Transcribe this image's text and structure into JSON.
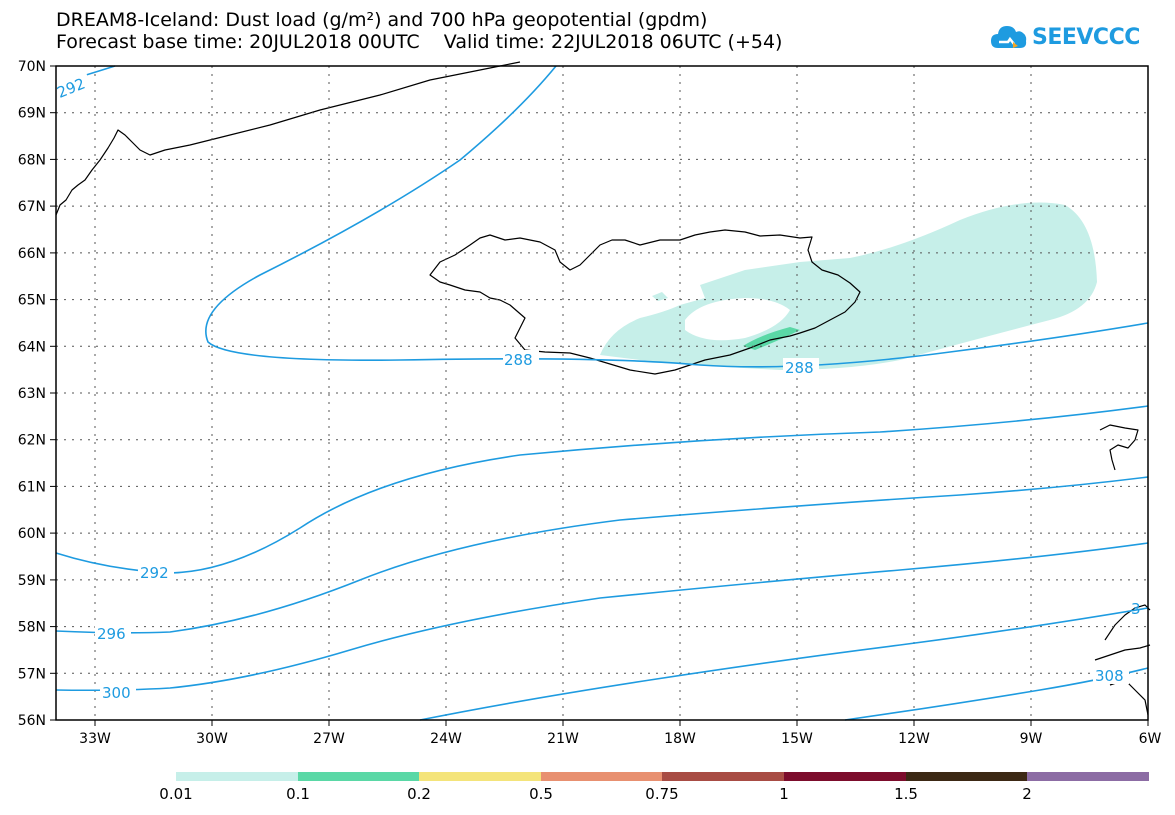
{
  "title": {
    "line1": "DREAM8-Iceland: Dust load (g/m²) and 700 hPa geopotential (gpdm)",
    "line2": "Forecast base time: 20JUL2018 00UTC    Valid time: 22JUL2018 06UTC (+54)"
  },
  "logo": {
    "text": "SEEVCCC",
    "icon": "cloud-icon"
  },
  "axes": {
    "lat_labels": [
      "70N",
      "69N",
      "68N",
      "67N",
      "66N",
      "65N",
      "64N",
      "63N",
      "62N",
      "61N",
      "60N",
      "59N",
      "58N",
      "57N",
      "56N"
    ],
    "lon_labels": [
      "33W",
      "30W",
      "27W",
      "24W",
      "21W",
      "18W",
      "15W",
      "12W",
      "9W",
      "6W"
    ]
  },
  "contours": {
    "color": "#1e9be0",
    "labels": [
      "292",
      "288",
      "288",
      "292",
      "296",
      "300",
      "308",
      "3"
    ]
  },
  "dust": {
    "light_color": "#c6efe9",
    "core_color": "#5ad8a6"
  },
  "colorbar": {
    "colors": [
      "#c6efe9",
      "#5ad8a6",
      "#f4e47a",
      "#e89070",
      "#a84c44",
      "#7c0c2c",
      "#3c2814",
      "#8c6ca4"
    ],
    "labels": [
      "0.01",
      "0.1",
      "0.2",
      "0.5",
      "0.75",
      "1",
      "1.5",
      "2"
    ]
  }
}
